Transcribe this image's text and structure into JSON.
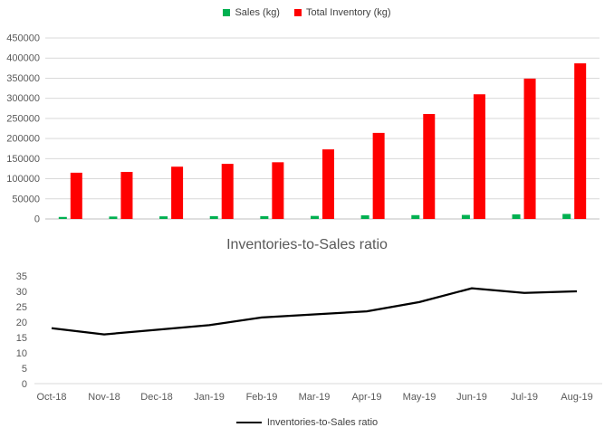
{
  "chart_data": [
    {
      "type": "bar",
      "title": "",
      "categories": [
        "Oct-18",
        "Nov-18",
        "Dec-18",
        "Jan-19",
        "Feb-19",
        "Mar-19",
        "Apr-19",
        "May-19",
        "Jun-19",
        "Jul-19",
        "Aug-19"
      ],
      "series": [
        {
          "name": "Sales (kg)",
          "color": "#00B050",
          "values": [
            5000,
            6000,
            6500,
            7000,
            7000,
            7500,
            9000,
            9500,
            10000,
            11500,
            12500
          ]
        },
        {
          "name": "Total Inventory (kg)",
          "color": "#FF0000",
          "values": [
            115000,
            117000,
            130000,
            137000,
            141000,
            173000,
            214000,
            261000,
            310000,
            349000,
            387000
          ]
        }
      ],
      "ylim": [
        0,
        450000
      ],
      "ytick_step": 50000,
      "grid": true,
      "legend_position": "top",
      "x_axis_labels_visible": false
    },
    {
      "type": "line",
      "title": "Inventories-to-Sales ratio",
      "categories": [
        "Oct-18",
        "Nov-18",
        "Dec-18",
        "Jan-19",
        "Feb-19",
        "Mar-19",
        "Apr-19",
        "May-19",
        "Jun-19",
        "Jul-19",
        "Aug-19"
      ],
      "series": [
        {
          "name": "Inventories-to-Sales ratio",
          "color": "#000000",
          "values": [
            18,
            16,
            17.5,
            19,
            21.5,
            22.5,
            23.5,
            26.5,
            31,
            29.5,
            30
          ]
        }
      ],
      "ylim": [
        0,
        35
      ],
      "ytick_step": 5,
      "grid": false,
      "legend_position": "bottom"
    }
  ],
  "colors": {
    "axis_text": "#595959",
    "gridline": "#D9D9D9",
    "axis_line": "#BFBFBF",
    "title": "#595959"
  }
}
